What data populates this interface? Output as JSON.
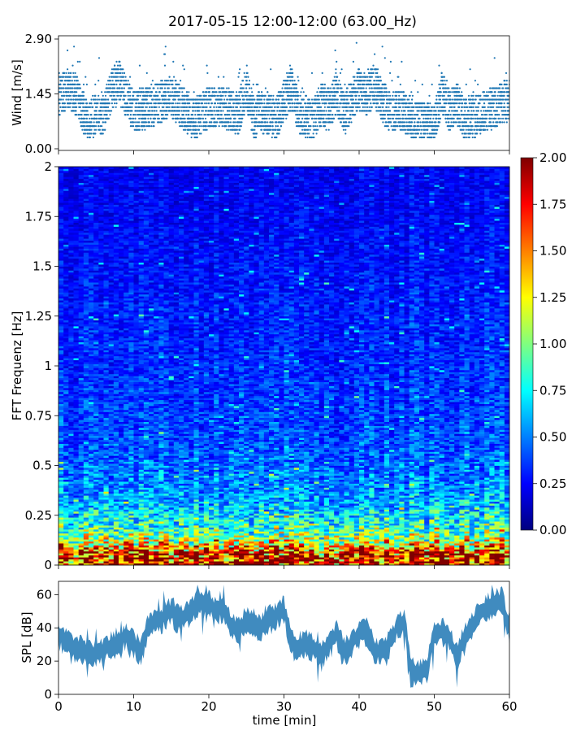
{
  "chart_data": [
    {
      "type": "scatter",
      "title": "2017-05-15 12:00-12:00 (63.00_Hz)",
      "ylabel": "Wind [m/s]",
      "xlabel": "",
      "xlim": [
        0,
        60
      ],
      "ylim": [
        0,
        2.9
      ],
      "yticks": [
        0.0,
        1.45,
        2.9
      ],
      "ytick_labels": [
        "0.00",
        "1.45",
        "2.90"
      ],
      "color": "#1f77b4",
      "quantization_step": 0.1,
      "envelope": {
        "x": [
          0,
          1,
          2,
          3,
          4,
          5,
          6,
          7,
          8,
          9,
          10,
          12,
          14,
          15,
          16,
          17,
          18,
          20,
          22,
          24,
          25,
          26,
          27,
          29,
          30,
          31,
          32,
          34,
          35,
          36,
          37,
          38,
          40,
          41,
          42,
          43,
          44,
          46,
          48,
          50,
          51,
          52,
          53,
          54,
          56,
          58,
          60
        ],
        "y": [
          1.4,
          1.6,
          1.5,
          1.1,
          0.6,
          1.0,
          0.9,
          1.5,
          1.8,
          1.4,
          1.0,
          1.1,
          1.3,
          1.4,
          1.2,
          1.0,
          0.8,
          1.1,
          1.1,
          0.9,
          1.6,
          0.8,
          1.0,
          0.8,
          1.3,
          1.6,
          0.9,
          0.8,
          1.2,
          1.0,
          1.5,
          0.9,
          1.6,
          1.4,
          1.7,
          1.3,
          1.0,
          1.0,
          0.7,
          0.6,
          1.5,
          1.0,
          1.2,
          0.8,
          0.9,
          1.1,
          1.3
        ]
      }
    },
    {
      "type": "heatmap",
      "ylabel": "FFT Frequenz [Hz]",
      "xlabel": "",
      "xlim": [
        0,
        60
      ],
      "ylim": [
        0,
        2
      ],
      "yticks": [
        0,
        0.25,
        0.5,
        0.75,
        1,
        1.25,
        1.5,
        1.75,
        2
      ],
      "ytick_labels": [
        "0",
        "0.25",
        "0.5",
        "0.75",
        "1",
        "1.25",
        "1.5",
        "1.75",
        "2"
      ],
      "colormap": "jet",
      "colorbar": {
        "range": [
          0,
          2
        ],
        "ticks": [
          0.0,
          0.25,
          0.5,
          0.75,
          1.0,
          1.25,
          1.5,
          1.75,
          2.0
        ],
        "tick_labels": [
          "0.00",
          "0.25",
          "0.50",
          "0.75",
          "1.00",
          "1.25",
          "1.50",
          "1.75",
          "2.00"
        ]
      },
      "freq_profile": {
        "freq": [
          0,
          0.05,
          0.1,
          0.15,
          0.2,
          0.25,
          0.3,
          0.4,
          0.5,
          0.6,
          0.75,
          1.0,
          1.25,
          1.5,
          1.75,
          2.0
        ],
        "level": [
          1.9,
          1.8,
          1.3,
          0.95,
          0.8,
          0.7,
          0.6,
          0.5,
          0.45,
          0.4,
          0.37,
          0.32,
          0.3,
          0.27,
          0.24,
          0.22
        ]
      }
    },
    {
      "type": "line",
      "ylabel": "SPL [dB]",
      "xlabel": "time [min]",
      "xlim": [
        0,
        60
      ],
      "ylim": [
        0,
        68
      ],
      "yticks": [
        0,
        20,
        40,
        60
      ],
      "ytick_labels": [
        "0",
        "20",
        "40",
        "60"
      ],
      "xticks": [
        0,
        10,
        20,
        30,
        40,
        50,
        60
      ],
      "xtick_labels": [
        "0",
        "10",
        "20",
        "30",
        "40",
        "50",
        "60"
      ],
      "color": "#1f77b4",
      "series": [
        {
          "name": "SPL",
          "x": [
            0,
            1,
            2,
            3,
            4,
            5,
            6,
            7,
            8,
            9,
            10,
            11,
            12,
            13,
            14,
            15,
            16,
            17,
            18,
            19,
            20,
            21,
            22,
            23,
            24,
            25,
            26,
            27,
            28,
            29,
            30,
            31,
            32,
            33,
            34,
            35,
            36,
            37,
            38,
            39,
            40,
            41,
            42,
            43,
            44,
            45,
            46,
            47,
            48,
            49,
            50,
            51,
            52,
            53,
            54,
            55,
            56,
            57,
            58,
            59,
            60
          ],
          "y": [
            35,
            33,
            29,
            27,
            24,
            25,
            27,
            30,
            32,
            36,
            30,
            26,
            42,
            43,
            47,
            50,
            45,
            47,
            52,
            56,
            54,
            50,
            52,
            42,
            38,
            45,
            43,
            40,
            45,
            48,
            52,
            30,
            29,
            32,
            27,
            23,
            31,
            36,
            26,
            30,
            37,
            38,
            27,
            25,
            30,
            40,
            43,
            14,
            13,
            14,
            37,
            38,
            34,
            23,
            35,
            41,
            50,
            52,
            55,
            57,
            38
          ]
        }
      ]
    }
  ]
}
